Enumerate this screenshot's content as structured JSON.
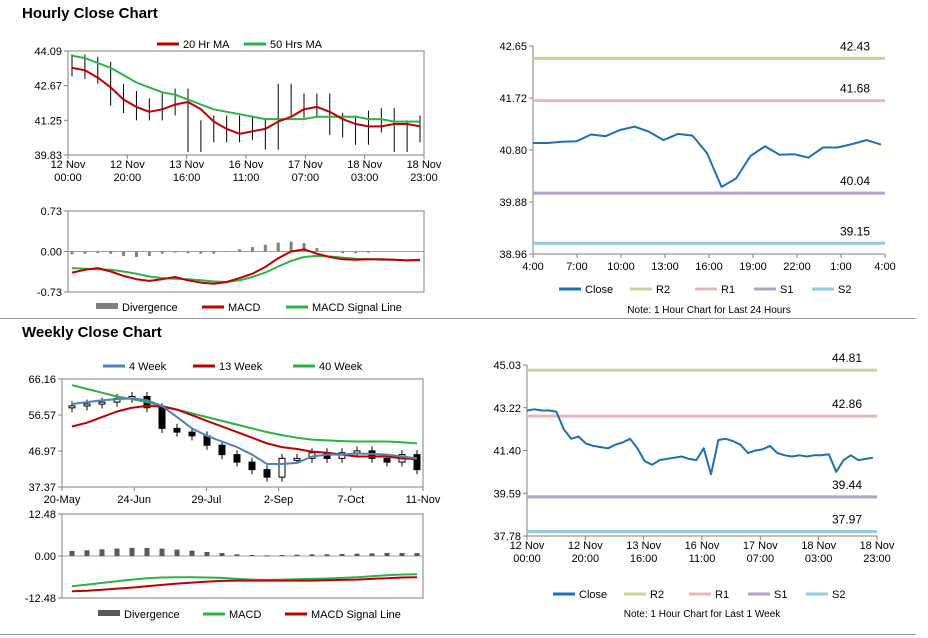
{
  "hourly_section": {
    "title": "Hourly Close Chart"
  },
  "weekly_section": {
    "title": "Weekly Close Chart"
  },
  "colors": {
    "ma_red": "#c00000",
    "ma_green": "#2db24a",
    "ma_blue": "#4f81bd",
    "candle": "#000000",
    "divergence": "#808080",
    "close_line": "#1f6fb5",
    "r2": "#c4d79b",
    "r1": "#e6b9b8",
    "s1": "#b3a2c7",
    "s2": "#93cddd"
  },
  "chart_data": [
    {
      "id": "hourly-price",
      "type": "line",
      "legend": [
        "20 Hr MA",
        "50 Hrs MA"
      ],
      "y_ticks": [
        "44.09",
        "42.67",
        "41.25",
        "39.83"
      ],
      "ylim": [
        39.83,
        44.09
      ],
      "x_ticks": [
        [
          "12 Nov",
          "00:00"
        ],
        [
          "12 Nov",
          "20:00"
        ],
        [
          "13 Nov",
          "16:00"
        ],
        [
          "16 Nov",
          "11:00"
        ],
        [
          "17 Nov",
          "07:00"
        ],
        [
          "18 Nov",
          "03:00"
        ],
        [
          "18 Nov",
          "23:00"
        ]
      ],
      "series": [
        {
          "name": "20 Hr MA",
          "values": [
            43.4,
            43.3,
            43.0,
            42.6,
            42.1,
            41.8,
            41.6,
            41.7,
            41.9,
            42.0,
            41.7,
            41.2,
            40.9,
            40.7,
            40.8,
            40.9,
            41.2,
            41.4,
            41.7,
            41.8,
            41.6,
            41.3,
            41.1,
            41.0,
            41.0,
            41.1,
            41.1,
            41.0
          ]
        },
        {
          "name": "50 Hrs MA",
          "values": [
            43.9,
            43.8,
            43.6,
            43.4,
            43.1,
            42.8,
            42.6,
            42.4,
            42.3,
            42.1,
            41.9,
            41.7,
            41.6,
            41.5,
            41.4,
            41.3,
            41.3,
            41.3,
            41.3,
            41.4,
            41.4,
            41.4,
            41.4,
            41.3,
            41.3,
            41.2,
            41.2,
            41.2
          ]
        },
        {
          "name": "Close",
          "values": [
            43.5,
            43.4,
            43.2,
            42.3,
            42.0,
            41.7,
            41.7,
            41.9,
            42.1,
            40.4,
            40.8,
            41.0,
            40.8,
            41.0,
            40.9,
            40.5,
            42.3,
            41.9,
            41.8,
            41.9,
            41.1,
            41.0,
            40.7,
            41.2,
            41.3,
            40.4,
            40.8,
            41.0
          ]
        }
      ]
    },
    {
      "id": "hourly-macd",
      "type": "line",
      "legend": [
        "Divergence",
        "MACD",
        "MACD Signal Line"
      ],
      "y_ticks": [
        "0.73",
        "0.00",
        "-0.73"
      ],
      "ylim": [
        -0.73,
        0.73
      ],
      "series": [
        {
          "name": "MACD",
          "values": [
            -0.38,
            -0.33,
            -0.3,
            -0.36,
            -0.44,
            -0.5,
            -0.53,
            -0.5,
            -0.46,
            -0.52,
            -0.56,
            -0.58,
            -0.55,
            -0.48,
            -0.4,
            -0.28,
            -0.12,
            0.0,
            0.04,
            -0.04,
            -0.1,
            -0.14,
            -0.15,
            -0.14,
            -0.14,
            -0.15,
            -0.16,
            -0.15
          ]
        },
        {
          "name": "MACD Signal Line",
          "values": [
            -0.3,
            -0.31,
            -0.32,
            -0.33,
            -0.36,
            -0.4,
            -0.45,
            -0.48,
            -0.49,
            -0.5,
            -0.52,
            -0.54,
            -0.55,
            -0.52,
            -0.46,
            -0.38,
            -0.27,
            -0.17,
            -0.1,
            -0.08,
            -0.09,
            -0.11,
            -0.13,
            -0.14,
            -0.15,
            -0.15,
            -0.16,
            -0.16
          ]
        },
        {
          "name": "Divergence",
          "values": [
            -0.05,
            -0.04,
            -0.03,
            -0.04,
            -0.08,
            -0.1,
            -0.08,
            -0.04,
            -0.02,
            -0.03,
            -0.04,
            -0.04,
            -0.01,
            0.04,
            0.08,
            0.12,
            0.16,
            0.18,
            0.15,
            0.06,
            0.0,
            -0.03,
            -0.03,
            -0.02,
            0.0,
            0.0,
            0.0,
            0.0
          ]
        }
      ]
    },
    {
      "id": "hourly-levels",
      "type": "line",
      "y_ticks": [
        "42.65",
        "41.72",
        "40.80",
        "39.88",
        "38.96"
      ],
      "ylim": [
        38.96,
        42.65
      ],
      "x_ticks": [
        "4:00",
        "7:00",
        "10:00",
        "13:00",
        "16:00",
        "19:00",
        "22:00",
        "1:00",
        "4:00"
      ],
      "legend": [
        "Close",
        "R2",
        "R1",
        "S1",
        "S2"
      ],
      "levels": {
        "R2": 42.43,
        "R1": 41.68,
        "S1": 40.04,
        "S2": 39.15
      },
      "level_labels": {
        "R2": "42.43",
        "R1": "41.68",
        "S1": "40.04",
        "S2": "39.15"
      },
      "series": [
        {
          "name": "Close",
          "values": [
            40.93,
            40.93,
            40.95,
            40.96,
            41.08,
            41.05,
            41.16,
            41.22,
            41.13,
            40.98,
            41.09,
            41.06,
            40.75,
            40.15,
            40.3,
            40.7,
            40.87,
            40.72,
            40.73,
            40.67,
            40.85,
            40.85,
            40.91,
            40.98,
            40.9
          ]
        }
      ],
      "note": "Note: 1 Hour Chart for Last 24 Hours"
    },
    {
      "id": "weekly-price",
      "type": "line",
      "legend": [
        "4 Week",
        "13 Week",
        "40 Week"
      ],
      "y_ticks": [
        "66.16",
        "56.57",
        "46.97",
        "37.37"
      ],
      "ylim": [
        37.37,
        66.16
      ],
      "x_ticks": [
        "20-May",
        "24-Jun",
        "29-Jul",
        "2-Sep",
        "7-Oct",
        "11-Nov"
      ],
      "series": [
        {
          "name": "4 Week",
          "values": [
            59.5,
            60.0,
            60.5,
            60.8,
            61.0,
            60.5,
            59.0,
            56.0,
            53.0,
            51.0,
            49.5,
            48.0,
            46.0,
            43.5,
            43.5,
            43.8,
            45.5,
            46.0,
            46.0,
            46.3,
            46.2,
            46.0,
            45.5,
            45.0
          ]
        },
        {
          "name": "13 Week",
          "values": [
            53.5,
            54.5,
            56.0,
            57.5,
            58.5,
            59.0,
            58.8,
            58.0,
            56.5,
            55.0,
            53.5,
            52.0,
            50.5,
            49.0,
            48.0,
            47.5,
            46.8,
            46.5,
            46.0,
            45.5,
            45.5,
            45.5,
            45.0,
            44.8
          ]
        },
        {
          "name": "40 Week",
          "values": [
            64.5,
            63.5,
            62.5,
            61.5,
            60.8,
            60.0,
            59.0,
            58.0,
            57.0,
            56.0,
            55.0,
            54.0,
            53.0,
            52.0,
            51.2,
            50.5,
            50.0,
            49.8,
            49.6,
            49.5,
            49.5,
            49.5,
            49.3,
            49.0
          ]
        },
        {
          "name": "Close",
          "values": [
            59.0,
            59.5,
            60.0,
            61.0,
            61.5,
            58.5,
            53.0,
            52.0,
            51.0,
            48.5,
            46.0,
            44.0,
            42.0,
            40.0,
            45.0,
            45.0,
            46.5,
            45.0,
            46.5,
            47.0,
            45.0,
            44.0,
            46.0,
            42.0
          ]
        }
      ]
    },
    {
      "id": "weekly-macd",
      "type": "line",
      "legend": [
        "Divergence",
        "MACD",
        "MACD Signal Line"
      ],
      "y_ticks": [
        "12.48",
        "0.00",
        "-12.48"
      ],
      "ylim": [
        -12.48,
        12.48
      ],
      "series": [
        {
          "name": "MACD",
          "values": [
            -9.0,
            -8.5,
            -8.0,
            -7.5,
            -7.0,
            -6.6,
            -6.4,
            -6.3,
            -6.3,
            -6.4,
            -6.5,
            -6.8,
            -7.0,
            -7.1,
            -7.0,
            -6.9,
            -6.8,
            -6.7,
            -6.5,
            -6.3,
            -6.0,
            -5.7,
            -5.5,
            -5.4
          ]
        },
        {
          "name": "MACD Signal Line",
          "values": [
            -10.5,
            -10.3,
            -10.0,
            -9.7,
            -9.4,
            -9.0,
            -8.6,
            -8.2,
            -7.9,
            -7.6,
            -7.4,
            -7.3,
            -7.3,
            -7.3,
            -7.3,
            -7.3,
            -7.3,
            -7.2,
            -7.1,
            -7.0,
            -6.8,
            -6.6,
            -6.4,
            -6.3
          ]
        },
        {
          "name": "Divergence",
          "values": [
            1.5,
            1.7,
            2.0,
            2.2,
            2.4,
            2.4,
            2.2,
            1.9,
            1.6,
            1.2,
            0.9,
            0.5,
            0.3,
            0.2,
            0.3,
            0.4,
            0.5,
            0.5,
            0.6,
            0.7,
            0.8,
            0.9,
            0.9,
            0.9
          ]
        }
      ]
    },
    {
      "id": "weekly-levels",
      "type": "line",
      "y_ticks": [
        "45.03",
        "43.22",
        "41.40",
        "39.59",
        "37.78"
      ],
      "ylim": [
        37.78,
        45.03
      ],
      "x_ticks": [
        [
          "12 Nov",
          "00:00"
        ],
        [
          "12 Nov",
          "20:00"
        ],
        [
          "13 Nov",
          "16:00"
        ],
        [
          "16 Nov",
          "11:00"
        ],
        [
          "17 Nov",
          "07:00"
        ],
        [
          "18 Nov",
          "03:00"
        ],
        [
          "18 Nov",
          "23:00"
        ]
      ],
      "legend": [
        "Close",
        "R2",
        "R1",
        "S1",
        "S2"
      ],
      "levels": {
        "R2": 44.81,
        "R1": 42.86,
        "S1": 39.44,
        "S2": 37.97
      },
      "level_labels": {
        "R2": "44.81",
        "R1": "42.86",
        "S1": "39.44",
        "S2": "37.97"
      },
      "series": [
        {
          "name": "Close",
          "values": [
            43.1,
            43.15,
            43.1,
            43.1,
            43.05,
            42.3,
            41.9,
            42.0,
            41.7,
            41.6,
            41.55,
            41.5,
            41.65,
            41.75,
            41.9,
            41.5,
            40.95,
            40.8,
            41.0,
            41.05,
            41.1,
            41.15,
            41.05,
            41.0,
            41.5,
            40.4,
            41.85,
            41.9,
            41.8,
            41.65,
            41.3,
            41.4,
            41.45,
            41.6,
            41.3,
            41.2,
            41.15,
            41.2,
            41.15,
            41.2,
            41.2,
            41.25,
            40.5,
            41.0,
            41.2,
            41.0,
            41.05,
            41.1
          ]
        }
      ],
      "note": "Note: 1 Hour Chart for Last 1 Week"
    }
  ]
}
